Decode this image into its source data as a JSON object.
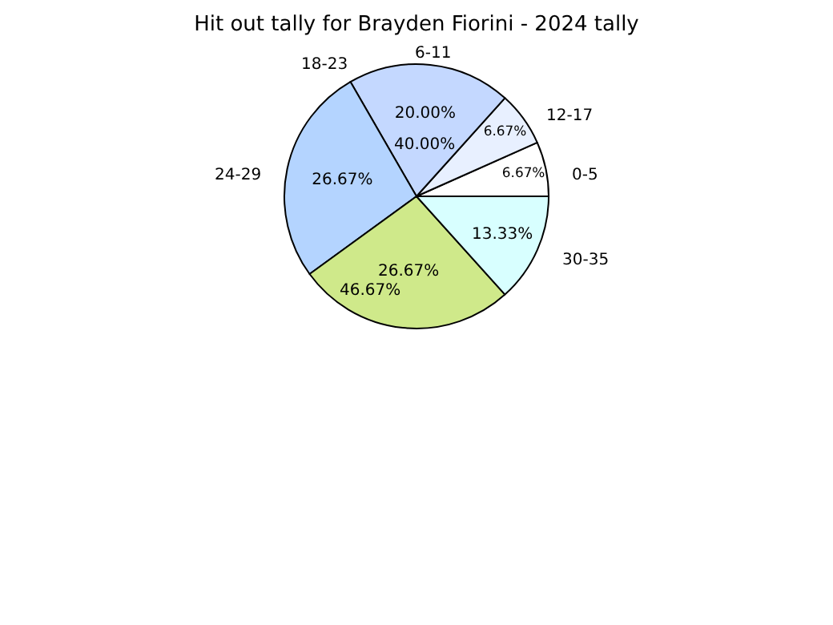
{
  "chart_data": {
    "type": "pie",
    "title": "Hit out tally for Brayden Fiorini - 2024 tally",
    "categories": [
      "0-5",
      "12-17",
      "6-11",
      "24-29",
      null,
      "30-35"
    ],
    "values": [
      6.67,
      6.67,
      20.0,
      26.67,
      26.67,
      13.33
    ],
    "value_labels": [
      "6.67%",
      "6.67%",
      "20.00%",
      "26.67%",
      "26.67%",
      "13.33%"
    ],
    "colors": [
      "#ffffff",
      "#e8f0ff",
      "#c4d8ff",
      "#b4d4ff",
      "#cfe98a",
      "#d8ffff"
    ],
    "annotations": [
      "18-23",
      "40.00%",
      "46.67%"
    ],
    "legend": false
  }
}
